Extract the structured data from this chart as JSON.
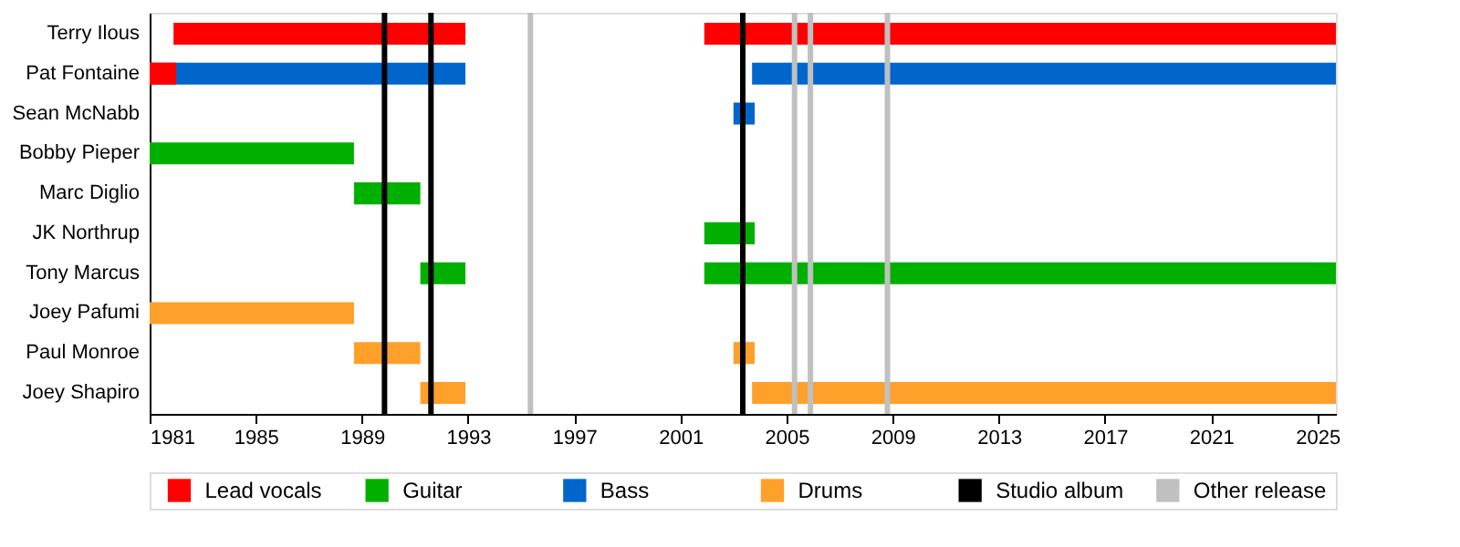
{
  "chart_data": {
    "type": "bar",
    "orientation": "horizontal",
    "legend": "bottom",
    "categories": [
      "Terry Ilous",
      "Pat Fontaine",
      "Sean McNabb",
      "Bobby Pieper",
      "Marc Diglio",
      "JK Northrup",
      "Tony Marcus",
      "Joey Pafumi",
      "Paul Monroe",
      "Joey Shapiro"
    ],
    "series": [
      {
        "name": "Lead vocals",
        "color": "#ff0000",
        "base": [
          1981.9,
          1981,
          null,
          null,
          null,
          null,
          null,
          null,
          null,
          null
        ],
        "values": [
          11.0,
          1.0,
          null,
          null,
          null,
          null,
          null,
          null,
          null,
          null
        ]
      },
      {
        "color": "#ff0000",
        "base": [
          2001.9,
          null,
          null,
          null,
          null,
          null,
          null,
          null,
          null,
          null
        ],
        "values": [
          23.8,
          null,
          null,
          null,
          null,
          null,
          null,
          null,
          null,
          null
        ]
      },
      {
        "name": "Guitar",
        "color": "#00b000",
        "base": [
          null,
          null,
          null,
          1981,
          1988.7,
          2001.9,
          1991.2,
          null,
          null,
          null
        ],
        "values": [
          null,
          null,
          null,
          7.7,
          2.5,
          1.9,
          1.7,
          null,
          null,
          null
        ]
      },
      {
        "color": "#00b000",
        "base": [
          null,
          null,
          null,
          null,
          null,
          null,
          2001.9,
          null,
          null,
          null
        ],
        "values": [
          null,
          null,
          null,
          null,
          null,
          null,
          23.8,
          null,
          null,
          null
        ]
      },
      {
        "name": "Bass",
        "color": "#0066cc",
        "base": [
          null,
          1981,
          2003.0,
          null,
          null,
          null,
          null,
          null,
          null,
          null
        ],
        "values": [
          null,
          11.9,
          0.8,
          null,
          null,
          null,
          null,
          null,
          null,
          null
        ]
      },
      {
        "color": "#0066cc",
        "base": [
          null,
          2003.7,
          null,
          null,
          null,
          null,
          null,
          null,
          null,
          null
        ],
        "values": [
          null,
          22.0,
          null,
          null,
          null,
          null,
          null,
          null,
          null,
          null
        ]
      },
      {
        "name": "Drums",
        "color": "#ffa02a",
        "base": [
          null,
          null,
          null,
          null,
          null,
          null,
          null,
          1981,
          1988.7,
          1991.2
        ],
        "values": [
          null,
          null,
          null,
          null,
          null,
          null,
          null,
          7.7,
          2.5,
          1.7
        ]
      },
      {
        "color": "#ffa02a",
        "base": [
          null,
          null,
          null,
          null,
          null,
          null,
          null,
          null,
          2003.0,
          2003.7
        ],
        "values": [
          null,
          null,
          null,
          null,
          null,
          null,
          null,
          null,
          0.8,
          22.0
        ]
      }
    ],
    "xlim": [
      1981,
      2025.7
    ],
    "xticks": [
      1981,
      1985,
      1989,
      1993,
      1997,
      2001,
      2005,
      2009,
      2013,
      2017,
      2021,
      2025
    ],
    "ref_lines": [
      {
        "axis": "x",
        "value": 1989.85,
        "label": "Studio album",
        "color": "#000000"
      },
      {
        "axis": "x",
        "value": 1991.6,
        "color": "#000000"
      },
      {
        "axis": "x",
        "value": 2003.35,
        "color": "#000000"
      },
      {
        "axis": "x",
        "value": 1995.35,
        "label": "Other release",
        "color": "#c0c0c0"
      },
      {
        "axis": "x",
        "value": 2005.3,
        "color": "#c0c0c0"
      },
      {
        "axis": "x",
        "value": 2005.9,
        "color": "#c0c0c0"
      },
      {
        "axis": "x",
        "value": 2008.8,
        "color": "#c0c0c0"
      }
    ]
  }
}
